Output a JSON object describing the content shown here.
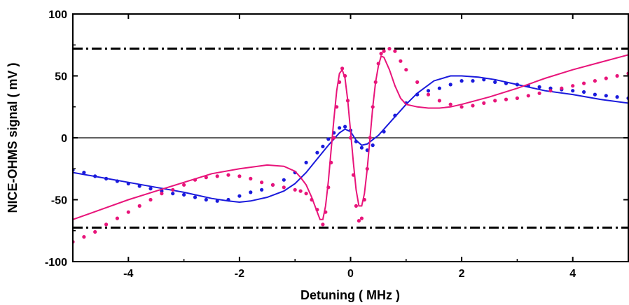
{
  "chart_data": {
    "type": "scatter",
    "xlabel": "Detuning ( MHz )",
    "ylabel": "NICE-OHMS signal ( mV )",
    "xlim": [
      -5,
      5
    ],
    "ylim": [
      -100,
      100
    ],
    "x_ticks": [
      -4,
      -2,
      0,
      2,
      4
    ],
    "x_tick_labels": [
      "-4",
      "-2",
      "0",
      "2",
      "4"
    ],
    "y_ticks": [
      -100,
      -50,
      0,
      50,
      100
    ],
    "y_tick_labels": [
      "-100",
      "-50",
      "0",
      "50",
      "100"
    ],
    "grid": false,
    "colors": {
      "blue": "#1a1adc",
      "magenta": "#e8147a",
      "black": "#000000"
    },
    "reference_lines": [
      {
        "y": 72,
        "style": "dash-dot"
      },
      {
        "y": -72.5,
        "style": "dash-dot"
      },
      {
        "y": 0,
        "style": "solid"
      }
    ],
    "series": [
      {
        "kind": "points",
        "color": "blue",
        "x": [
          -5.0,
          -4.8,
          -4.6,
          -4.4,
          -4.2,
          -4.0,
          -3.8,
          -3.6,
          -3.4,
          -3.2,
          -3.0,
          -2.8,
          -2.6,
          -2.4,
          -2.2,
          -2.0,
          -1.8,
          -1.6,
          -1.4,
          -1.2,
          -1.0,
          -0.8,
          -0.6,
          -0.5,
          -0.4,
          -0.3,
          -0.2,
          -0.1,
          0.0,
          0.1,
          0.2,
          0.3,
          0.4,
          0.6,
          0.8,
          1.0,
          1.2,
          1.4,
          1.6,
          1.8,
          2.0,
          2.2,
          2.4,
          2.6,
          2.8,
          3.0,
          3.2,
          3.4,
          3.6,
          3.8,
          4.0,
          4.2,
          4.4,
          4.6,
          4.8,
          5.0
        ],
        "y": [
          -26,
          -28,
          -31,
          -33,
          -35,
          -37,
          -39,
          -41,
          -43,
          -45,
          -46,
          -48,
          -50,
          -51,
          -50,
          -47,
          -44,
          -42,
          -38,
          -34,
          -28,
          -20,
          -12,
          -7,
          -1,
          4,
          8,
          9,
          6,
          -3,
          -8,
          -10,
          -6,
          5,
          18,
          28,
          35,
          38,
          40,
          43,
          46,
          46,
          47,
          45,
          44,
          43,
          42,
          41,
          40,
          39,
          38,
          37,
          35,
          34,
          33,
          32
        ]
      },
      {
        "kind": "curve",
        "color": "blue",
        "x": [
          -5.0,
          -4.5,
          -4.0,
          -3.5,
          -3.0,
          -2.5,
          -2.2,
          -2.0,
          -1.8,
          -1.5,
          -1.2,
          -1.0,
          -0.8,
          -0.6,
          -0.4,
          -0.2,
          -0.1,
          0.0,
          0.1,
          0.2,
          0.3,
          0.5,
          0.7,
          1.0,
          1.2,
          1.5,
          1.8,
          2.0,
          2.3,
          2.6,
          3.0,
          3.5,
          4.0,
          4.5,
          5.0
        ],
        "y": [
          -28,
          -32,
          -36,
          -40,
          -44,
          -49,
          -51,
          -52,
          -51,
          -48,
          -43,
          -37,
          -28,
          -17,
          -6,
          4,
          7,
          5,
          -2,
          -6,
          -5,
          2,
          12,
          27,
          36,
          46,
          50,
          50,
          49,
          47,
          43,
          38,
          35,
          31,
          28
        ]
      },
      {
        "kind": "points",
        "color": "magenta",
        "x": [
          -5.0,
          -4.8,
          -4.6,
          -4.4,
          -4.2,
          -4.0,
          -3.8,
          -3.6,
          -3.4,
          -3.2,
          -3.0,
          -2.8,
          -2.6,
          -2.4,
          -2.2,
          -2.0,
          -1.8,
          -1.6,
          -1.4,
          -1.2,
          -1.0,
          -0.9,
          -0.8,
          -0.7,
          -0.6,
          -0.5,
          -0.45,
          -0.4,
          -0.35,
          -0.3,
          -0.25,
          -0.2,
          -0.15,
          -0.1,
          -0.05,
          0.0,
          0.05,
          0.1,
          0.15,
          0.2,
          0.25,
          0.3,
          0.35,
          0.4,
          0.45,
          0.5,
          0.55,
          0.6,
          0.7,
          0.8,
          0.9,
          1.0,
          1.2,
          1.4,
          1.6,
          1.8,
          2.0,
          2.2,
          2.4,
          2.6,
          2.8,
          3.0,
          3.2,
          3.4,
          3.6,
          3.8,
          4.0,
          4.2,
          4.4,
          4.6,
          4.8,
          5.0
        ],
        "y": [
          -84,
          -80,
          -76,
          -70,
          -65,
          -60,
          -55,
          -50,
          -45,
          -42,
          -38,
          -34,
          -32,
          -31,
          -30,
          -31,
          -33,
          -36,
          -38,
          -40,
          -42,
          -43,
          -45,
          -50,
          -58,
          -70,
          -60,
          -40,
          -20,
          0,
          25,
          45,
          56,
          50,
          30,
          0,
          -30,
          -55,
          -67,
          -65,
          -50,
          -25,
          0,
          25,
          45,
          60,
          68,
          70,
          72,
          70,
          62,
          55,
          45,
          35,
          30,
          27,
          25,
          26,
          28,
          30,
          31,
          32,
          34,
          36,
          38,
          40,
          42,
          44,
          46,
          48,
          50,
          52
        ]
      },
      {
        "kind": "curve",
        "color": "magenta",
        "x": [
          -5.0,
          -4.5,
          -4.0,
          -3.5,
          -3.0,
          -2.5,
          -2.0,
          -1.5,
          -1.2,
          -1.0,
          -0.9,
          -0.8,
          -0.7,
          -0.6,
          -0.55,
          -0.5,
          -0.45,
          -0.4,
          -0.35,
          -0.3,
          -0.25,
          -0.2,
          -0.15,
          -0.1,
          -0.05,
          0.0,
          0.05,
          0.1,
          0.15,
          0.2,
          0.25,
          0.3,
          0.35,
          0.4,
          0.45,
          0.5,
          0.55,
          0.6,
          0.7,
          0.8,
          0.9,
          1.0,
          1.2,
          1.4,
          1.6,
          1.8,
          2.0,
          2.5,
          3.0,
          3.5,
          4.0,
          4.5,
          5.0
        ],
        "y": [
          -66,
          -58,
          -50,
          -43,
          -36,
          -29,
          -25,
          -22,
          -23,
          -27,
          -32,
          -38,
          -48,
          -60,
          -66,
          -66,
          -55,
          -35,
          -10,
          15,
          38,
          52,
          55,
          48,
          30,
          5,
          -20,
          -42,
          -55,
          -55,
          -45,
          -25,
          0,
          25,
          45,
          58,
          66,
          65,
          55,
          42,
          32,
          27,
          25,
          24,
          24,
          25,
          27,
          33,
          40,
          48,
          55,
          61,
          67
        ]
      }
    ]
  }
}
